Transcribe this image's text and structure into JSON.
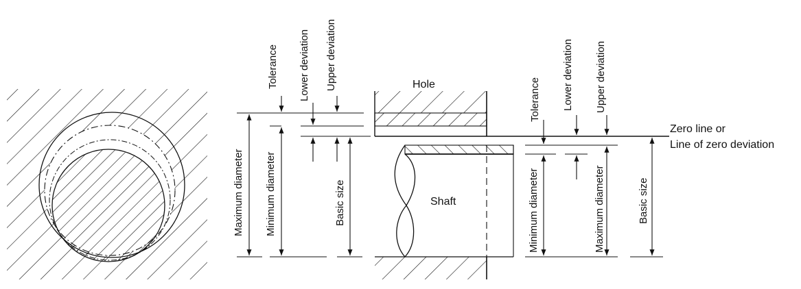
{
  "colors": {
    "line": "#111111",
    "background": "#ffffff"
  },
  "hole_side": {
    "tolerance": "Tolerance",
    "lower_deviation": "Lower deviation",
    "upper_deviation": "Upper deviation",
    "maximum_diameter": "Maximum diameter",
    "minimum_diameter": "Minimum diameter",
    "basic_size": "Basic size"
  },
  "parts": {
    "hole": "Hole",
    "shaft": "Shaft"
  },
  "shaft_side": {
    "tolerance": "Tolerance",
    "lower_deviation": "Lower deviation",
    "upper_deviation": "Upper deviation",
    "minimum_diameter": "Minimum diameter",
    "maximum_diameter": "Maximum diameter",
    "basic_size": "Basic size"
  },
  "zero_line": {
    "line1": "Zero line or",
    "line2": "Line of zero deviation"
  }
}
